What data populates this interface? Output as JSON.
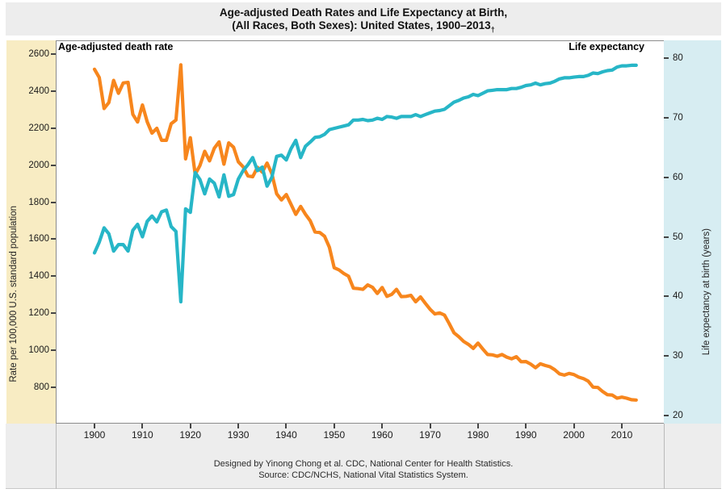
{
  "title": {
    "line1": "Age-adjusted Death Rates and Life Expectancy at Birth,",
    "line2": "(All Races, Both Sexes): United States, 1900–2013",
    "dagger": "†"
  },
  "plot_labels": {
    "death_rate": "Age-adjusted death rate",
    "life_expectancy": "Life expectancy"
  },
  "footer": {
    "line1": "Designed by Yinong Chong et al. CDC, National Center for Health Statistics.",
    "line2": "Source: CDC/NCHS, National Vital Statistics System."
  },
  "colors": {
    "death_rate_line": "#F7861D",
    "life_expectancy_line": "#27B6C7",
    "left_band": "#F8ECC3",
    "right_band": "#D7EDF2",
    "strip_bg": "#EDEDED",
    "plot_border": "#8C8C8C"
  },
  "chart_data": {
    "type": "line",
    "title": "Age-adjusted Death Rates and Life Expectancy at Birth, (All Races, Both Sexes): United States, 1900–2013",
    "x_label": "",
    "x_range": [
      1900,
      2013
    ],
    "x_step": 1,
    "x_ticks": [
      1900,
      1910,
      1920,
      1930,
      1940,
      1950,
      1960,
      1970,
      1980,
      1990,
      2000,
      2010
    ],
    "grid": false,
    "legend": "labels inside plot, top-left and top-right",
    "axes": {
      "left": {
        "title": "Rate per 100,000 U.S. standard population",
        "ticks": [
          800,
          1000,
          1200,
          1400,
          1600,
          1800,
          2000,
          2200,
          2400,
          2600
        ],
        "range": [
          600,
          2670
        ]
      },
      "right": {
        "title": "Life expectancy at birth (years)",
        "ticks": [
          20,
          30,
          40,
          50,
          60,
          70,
          80
        ],
        "range": [
          18.6,
          82.9
        ]
      }
    },
    "series": [
      {
        "name": "Age-adjusted death rate",
        "axis": "left",
        "color": "#F7861D",
        "values": [
          2518,
          2473,
          2306,
          2338,
          2458,
          2388,
          2444,
          2447,
          2274,
          2233,
          2325,
          2234,
          2173,
          2199,
          2134,
          2134,
          2224,
          2244,
          2542,
          2034,
          2148,
          1950,
          1998,
          2075,
          2023,
          2092,
          2126,
          2005,
          2120,
          2097,
          2018,
          1991,
          1942,
          1937,
          1988,
          1962,
          2011,
          1954,
          1845,
          1812,
          1841,
          1788,
          1734,
          1777,
          1735,
          1700,
          1639,
          1636,
          1616,
          1556,
          1446,
          1434,
          1415,
          1400,
          1335,
          1333,
          1329,
          1353,
          1340,
          1307,
          1339,
          1291,
          1302,
          1329,
          1290,
          1291,
          1297,
          1262,
          1288,
          1254,
          1222,
          1196,
          1202,
          1190,
          1144,
          1094,
          1073,
          1048,
          1032,
          1010,
          1039,
          1007,
          977,
          975,
          968,
          977,
          963,
          954,
          965,
          938,
          939,
          925,
          906,
          927,
          918,
          911,
          895,
          873,
          866,
          875,
          869,
          855,
          847,
          833,
          801,
          799,
          777,
          760,
          758,
          741,
          747,
          741,
          733,
          731
        ]
      },
      {
        "name": "Life expectancy",
        "axis": "right",
        "color": "#27B6C7",
        "values": [
          47.3,
          49.1,
          51.5,
          50.5,
          47.6,
          48.7,
          48.7,
          47.6,
          51.1,
          52.1,
          50.0,
          52.6,
          53.5,
          52.5,
          54.2,
          54.5,
          51.7,
          50.9,
          39.1,
          54.7,
          54.1,
          60.8,
          59.6,
          57.2,
          59.7,
          59.0,
          56.7,
          60.4,
          56.8,
          57.1,
          59.7,
          61.1,
          62.1,
          63.3,
          61.1,
          61.7,
          58.5,
          60.0,
          63.5,
          63.7,
          62.9,
          64.8,
          66.2,
          63.3,
          65.2,
          65.9,
          66.7,
          66.8,
          67.2,
          68.0,
          68.2,
          68.4,
          68.6,
          68.8,
          69.6,
          69.6,
          69.7,
          69.5,
          69.6,
          69.9,
          69.7,
          70.2,
          70.1,
          69.9,
          70.2,
          70.2,
          70.2,
          70.5,
          70.2,
          70.5,
          70.8,
          71.1,
          71.2,
          71.4,
          72.0,
          72.6,
          72.9,
          73.3,
          73.5,
          73.9,
          73.7,
          74.1,
          74.5,
          74.6,
          74.7,
          74.7,
          74.7,
          74.9,
          74.9,
          75.1,
          75.4,
          75.5,
          75.8,
          75.5,
          75.7,
          75.8,
          76.1,
          76.5,
          76.7,
          76.7,
          76.8,
          76.9,
          76.9,
          77.1,
          77.5,
          77.4,
          77.7,
          77.9,
          78.0,
          78.5,
          78.7,
          78.7,
          78.8,
          78.8
        ]
      }
    ]
  }
}
